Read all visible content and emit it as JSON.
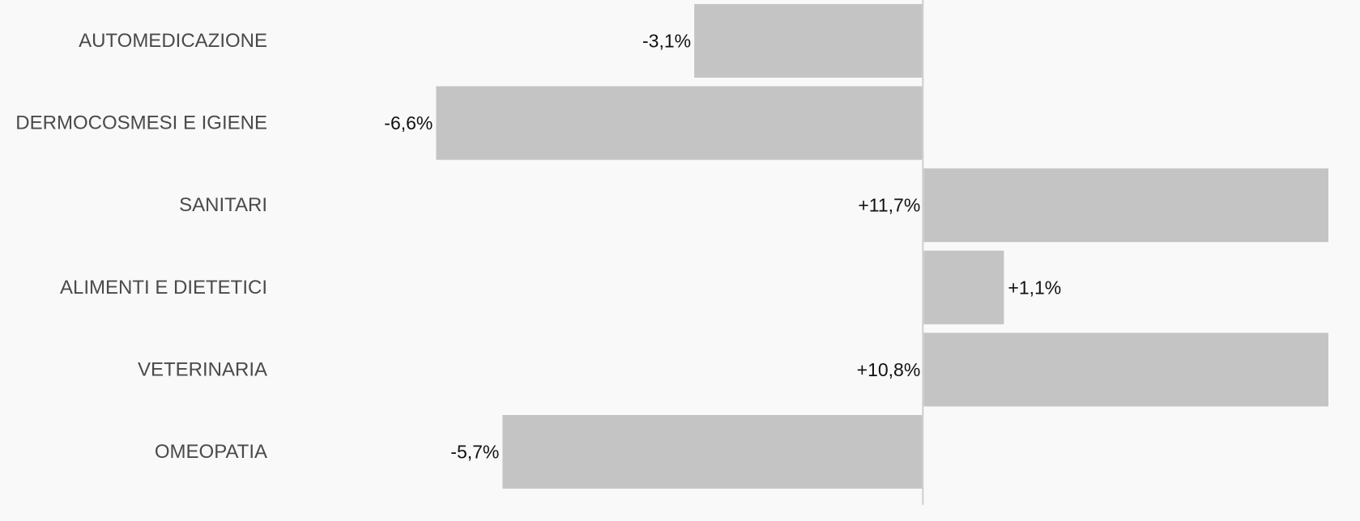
{
  "chart_data": {
    "type": "bar",
    "orientation": "horizontal",
    "categories": [
      "AUTOMEDICAZIONE",
      "DERMOCOSMESI E IGIENE",
      "SANITARI",
      "ALIMENTI E DIETETICI",
      "VETERINARIA",
      "OMEOPATIA"
    ],
    "values": [
      -3.1,
      -6.6,
      11.7,
      1.1,
      10.8,
      -5.7
    ],
    "value_labels": [
      "-3,1%",
      "-6,6%",
      "+11,7%",
      "+1,1%",
      "+10,8%",
      "-5,7%"
    ],
    "xlim": [
      -7.0,
      5.5
    ],
    "title": "",
    "xlabel": "",
    "ylabel": "",
    "grid": false,
    "colors": {
      "bar": "#c4c4c4",
      "zero_line": "#cfcfcf",
      "category_text": "#4a4a4a",
      "value_text": "#111111",
      "background": "#f9f9f9"
    }
  }
}
